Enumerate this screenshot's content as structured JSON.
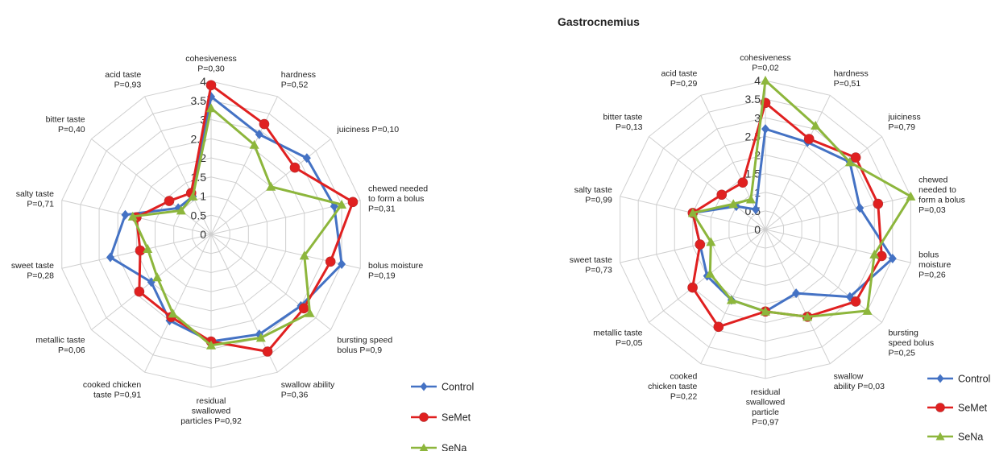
{
  "chart_data": [
    {
      "type": "radar",
      "title": "",
      "rlim": [
        0,
        4
      ],
      "ticks": [
        "0",
        "0.5",
        "1",
        "1.5",
        "2",
        "2.5",
        "3",
        "3.5",
        "4"
      ],
      "grid": true,
      "categories": [
        [
          "cohesiveness",
          "P=0,30"
        ],
        [
          "hardness",
          "P=0,52"
        ],
        [
          "juiciness P=0,10"
        ],
        [
          "chewed needed",
          "to form a bolus",
          "P=0,31"
        ],
        [
          "bolus moisture",
          "P=0,19"
        ],
        [
          "bursting speed",
          "bolus P=0,9"
        ],
        [
          "swallow ability",
          "P=0,36"
        ],
        [
          "residual",
          "swallowed",
          "particles P=0,92"
        ],
        [
          "cooked chicken",
          "taste P=0,91"
        ],
        [
          "metallic taste",
          "P=0,06"
        ],
        [
          "sweet taste",
          "P=0,28"
        ],
        [
          "salty taste",
          "P=0,71"
        ],
        [
          "bitter taste",
          "P=0,40"
        ],
        [
          "acid taste",
          "P=0,93"
        ]
      ],
      "series": [
        {
          "name": "Control",
          "color": "#4472C4",
          "marker": "diamond",
          "values": [
            3.6,
            2.9,
            3.2,
            3.3,
            3.5,
            3.0,
            2.9,
            2.8,
            2.5,
            2.0,
            2.7,
            2.3,
            1.1,
            1.1
          ]
        },
        {
          "name": "SeMet",
          "color": "#E02020",
          "marker": "circle",
          "values": [
            3.9,
            3.2,
            2.8,
            3.8,
            3.2,
            3.1,
            3.4,
            2.8,
            2.4,
            2.4,
            1.9,
            2.0,
            1.4,
            1.2
          ]
        },
        {
          "name": "SeNa",
          "color": "#8DB63C",
          "marker": "triangle",
          "values": [
            3.3,
            2.6,
            2.0,
            3.5,
            2.5,
            3.3,
            3.0,
            2.9,
            2.3,
            1.8,
            1.7,
            2.1,
            1.0,
            1.1
          ]
        }
      ],
      "legend": "bottom-right"
    },
    {
      "type": "radar",
      "title": "Gastrocnemius",
      "rlim": [
        0,
        4
      ],
      "ticks": [
        "0",
        "0.5",
        "1",
        "1.5",
        "2",
        "2.5",
        "3",
        "3.5",
        "4"
      ],
      "grid": true,
      "categories": [
        [
          "cohesiveness",
          "P=0,02"
        ],
        [
          "hardness",
          "P=0,51"
        ],
        [
          "juiciness",
          "P=0,79"
        ],
        [
          "chewed",
          "needed to",
          "form a bolus",
          "P=0,03"
        ],
        [
          "bolus",
          "moisture",
          "P=0,26"
        ],
        [
          "bursting",
          "speed bolus",
          "P=0,25"
        ],
        [
          "swallow",
          "ability P=0,03"
        ],
        [
          "residual",
          "swallowed",
          "particle",
          "P=0,97"
        ],
        [
          "cooked",
          "chicken taste",
          "P=0,22"
        ],
        [
          "metallic taste",
          "P=0,05"
        ],
        [
          "sweet taste",
          "P=0,73"
        ],
        [
          "salty taste",
          "P=0,99"
        ],
        [
          "bitter taste",
          "P=0,13"
        ],
        [
          "acid taste",
          "P=0,29"
        ]
      ],
      "series": [
        {
          "name": "Control",
          "color": "#4472C4",
          "marker": "diamond",
          "values": [
            2.7,
            2.6,
            2.9,
            2.6,
            3.5,
            2.9,
            1.9,
            2.2,
            2.1,
            2.0,
            1.8,
            2.0,
            1.0,
            0.6
          ]
        },
        {
          "name": "SeMet",
          "color": "#E02020",
          "marker": "circle",
          "values": [
            3.4,
            2.7,
            3.1,
            3.1,
            3.2,
            3.1,
            2.6,
            2.2,
            2.9,
            2.5,
            1.8,
            2.0,
            1.5,
            1.4
          ]
        },
        {
          "name": "SeNa",
          "color": "#8DB63C",
          "marker": "triangle",
          "values": [
            4.0,
            3.1,
            2.9,
            4.0,
            3.0,
            3.5,
            2.6,
            2.2,
            2.1,
            1.9,
            1.5,
            2.0,
            1.1,
            0.9
          ]
        }
      ],
      "legend": "bottom-right"
    }
  ]
}
